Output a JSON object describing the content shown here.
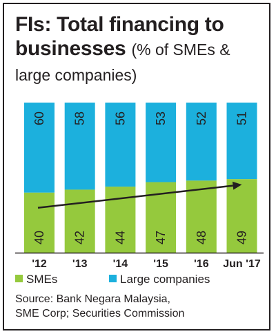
{
  "title": {
    "main": "FIs: Total financing to businesses",
    "sub": "(% of SMEs & large companies)"
  },
  "source": {
    "line1": "Source: Bank Negara Malaysia,",
    "line2": "SME Corp; Securities Commission"
  },
  "colors": {
    "sme": "#95c93d",
    "large": "#1cb0dd",
    "trend": "#231f20"
  },
  "chart_data": {
    "type": "bar",
    "stacked": true,
    "categories": [
      "'12",
      "'13",
      "'14",
      "'15",
      "'16",
      "Jun '17"
    ],
    "series": [
      {
        "name": "SMEs",
        "values": [
          40,
          42,
          44,
          47,
          48,
          49
        ]
      },
      {
        "name": "Large companies",
        "values": [
          60,
          58,
          56,
          53,
          52,
          51
        ]
      }
    ],
    "ylim": [
      0,
      100
    ],
    "legend_position": "bottom",
    "annotations": [
      "upward trend arrow across SME bars"
    ],
    "grid": false
  }
}
